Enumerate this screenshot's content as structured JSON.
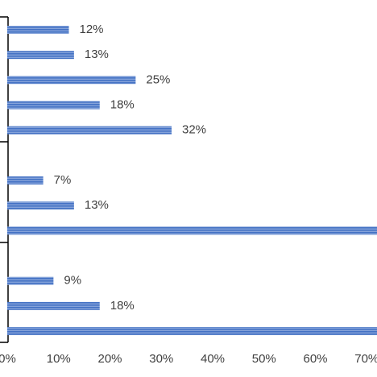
{
  "chart_data": {
    "type": "bar",
    "orientation": "horizontal",
    "categories": [
      null,
      null,
      null,
      null,
      null,
      null,
      null,
      null,
      null,
      null,
      null,
      null,
      null
    ],
    "values": [
      12,
      13,
      25,
      18,
      32,
      null,
      7,
      13,
      75,
      null,
      9,
      18,
      75
    ],
    "value_labels": [
      "12%",
      "13%",
      "25%",
      "18%",
      "32%",
      null,
      "7%",
      "13%",
      null,
      null,
      "9%",
      "18%",
      null
    ],
    "color": "#4472c4",
    "xlim": [
      0,
      72
    ],
    "xticks": [
      {
        "value": 0,
        "label": "0%"
      },
      {
        "value": 10,
        "label": "10%"
      },
      {
        "value": 20,
        "label": "20%"
      },
      {
        "value": 30,
        "label": "30%"
      },
      {
        "value": 40,
        "label": "40%"
      },
      {
        "value": 50,
        "label": "50%"
      },
      {
        "value": 60,
        "label": "60%"
      },
      {
        "value": 70,
        "label": "70%"
      }
    ]
  }
}
